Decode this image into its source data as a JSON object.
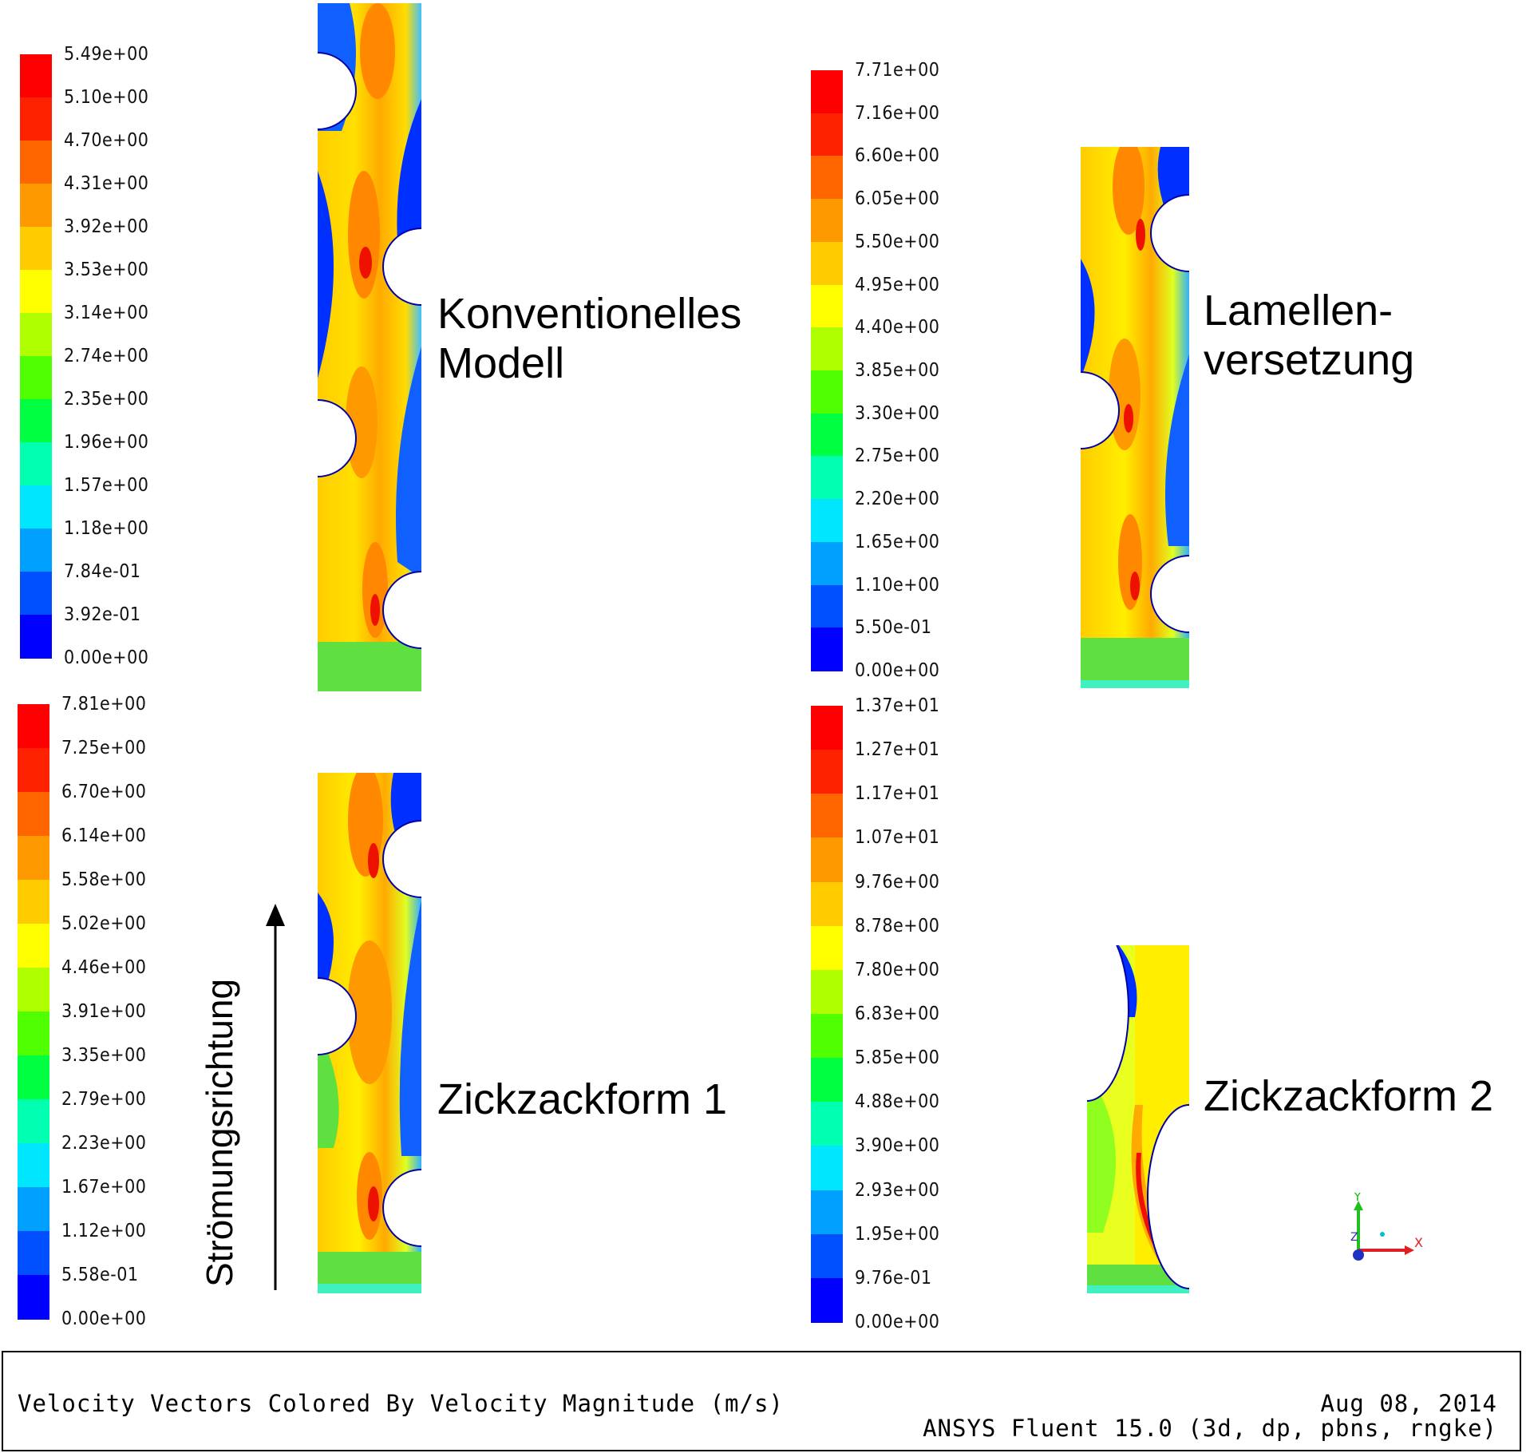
{
  "colormap": [
    "#0000ff",
    "#0050ff",
    "#00a0ff",
    "#00e6ff",
    "#00ffb0",
    "#00ff40",
    "#50ff00",
    "#b0ff00",
    "#ffff00",
    "#ffcc00",
    "#ff9900",
    "#ff6600",
    "#ff2200",
    "#ff0000"
  ],
  "panels": [
    {
      "label": "Konventionelles\nModell",
      "legend_ticks": [
        "5.49e+00",
        "5.10e+00",
        "4.70e+00",
        "4.31e+00",
        "3.92e+00",
        "3.53e+00",
        "3.14e+00",
        "2.74e+00",
        "2.35e+00",
        "1.96e+00",
        "1.57e+00",
        "1.18e+00",
        "7.84e-01",
        "3.92e-01",
        "0.00e+00"
      ]
    },
    {
      "label": "Lamellen-\nversetzung",
      "legend_ticks": [
        "7.71e+00",
        "7.16e+00",
        "6.60e+00",
        "6.05e+00",
        "5.50e+00",
        "4.95e+00",
        "4.40e+00",
        "3.85e+00",
        "3.30e+00",
        "2.75e+00",
        "2.20e+00",
        "1.65e+00",
        "1.10e+00",
        "5.50e-01",
        "0.00e+00"
      ]
    },
    {
      "label": "Zickzackform 1",
      "legend_ticks": [
        "7.81e+00",
        "7.25e+00",
        "6.70e+00",
        "6.14e+00",
        "5.58e+00",
        "5.02e+00",
        "4.46e+00",
        "3.91e+00",
        "3.35e+00",
        "2.79e+00",
        "2.23e+00",
        "1.67e+00",
        "1.12e+00",
        "5.58e-01",
        "0.00e+00"
      ]
    },
    {
      "label": "Zickzackform 2",
      "legend_ticks": [
        "1.37e+01",
        "1.27e+01",
        "1.17e+01",
        "1.07e+01",
        "9.76e+00",
        "8.78e+00",
        "7.80e+00",
        "6.83e+00",
        "5.85e+00",
        "4.88e+00",
        "3.90e+00",
        "2.93e+00",
        "1.95e+00",
        "9.76e-01",
        "0.00e+00"
      ]
    }
  ],
  "flow_direction_label": "Strömungsrichtung",
  "footer": {
    "title": "Velocity Vectors Colored By Velocity Magnitude (m/s)",
    "date": "Aug 08, 2014",
    "software": "ANSYS Fluent 15.0 (3d, dp, pbns, rngke)"
  },
  "axes_triad": {
    "x": "X",
    "y": "Y",
    "z": "Z"
  }
}
